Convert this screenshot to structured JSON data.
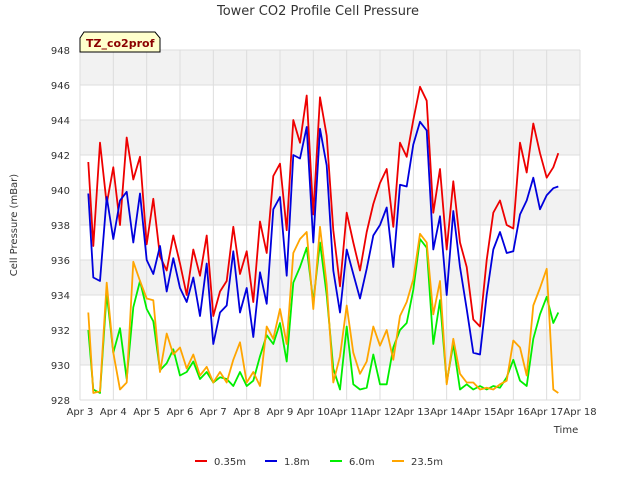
{
  "chart_data": {
    "type": "line",
    "title": "Tower CO2 Profile Cell Pressure",
    "tag": "TZ_co2prof",
    "xlabel": "Time",
    "ylabel": "Cell Pressure (mBar)",
    "ylim": [
      928,
      948
    ],
    "yticks": [
      928,
      930,
      932,
      934,
      936,
      938,
      940,
      942,
      944,
      946,
      948
    ],
    "xlim": [
      3,
      18
    ],
    "xticks": [
      {
        "v": 3,
        "label": "Apr 3"
      },
      {
        "v": 4,
        "label": "Apr 4"
      },
      {
        "v": 5,
        "label": "Apr 5"
      },
      {
        "v": 6,
        "label": "Apr 6"
      },
      {
        "v": 7,
        "label": "Apr 7"
      },
      {
        "v": 8,
        "label": "Apr 8"
      },
      {
        "v": 9,
        "label": "Apr 9"
      },
      {
        "v": 10,
        "label": "Apr 10"
      },
      {
        "v": 11,
        "label": "Apr 11"
      },
      {
        "v": 12,
        "label": "Apr 12"
      },
      {
        "v": 13,
        "label": "Apr 13"
      },
      {
        "v": 14,
        "label": "Apr 14"
      },
      {
        "v": 15,
        "label": "Apr 15"
      },
      {
        "v": 16,
        "label": "Apr 16"
      },
      {
        "v": 17,
        "label": "Apr 17"
      },
      {
        "v": 18,
        "label": "Apr 18"
      }
    ],
    "grid": true,
    "legend_position": "bottom",
    "series": [
      {
        "name": "0.35m",
        "color": "#ee0000",
        "x": [
          3.25,
          3.4,
          3.6,
          3.8,
          4.0,
          4.2,
          4.4,
          4.6,
          4.8,
          5.0,
          5.2,
          5.4,
          5.6,
          5.8,
          6.0,
          6.2,
          6.4,
          6.6,
          6.8,
          7.0,
          7.2,
          7.4,
          7.6,
          7.8,
          8.0,
          8.2,
          8.4,
          8.6,
          8.8,
          9.0,
          9.2,
          9.4,
          9.6,
          9.8,
          10.0,
          10.2,
          10.4,
          10.6,
          10.8,
          11.0,
          11.2,
          11.4,
          11.6,
          11.8,
          12.0,
          12.2,
          12.4,
          12.6,
          12.8,
          13.0,
          13.2,
          13.4,
          13.6,
          13.8,
          14.0,
          14.2,
          14.4,
          14.6,
          14.8,
          15.0,
          15.2,
          15.4,
          15.6,
          15.8,
          16.0,
          16.2,
          16.4,
          16.6,
          16.8,
          17.0,
          17.2,
          17.35
        ],
        "y": [
          941.6,
          936.8,
          942.7,
          939.2,
          941.3,
          938.0,
          943.0,
          940.6,
          941.9,
          936.9,
          939.5,
          936.2,
          935.4,
          937.4,
          935.8,
          934.0,
          936.6,
          935.1,
          937.4,
          932.8,
          934.2,
          934.8,
          937.9,
          935.2,
          936.5,
          933.6,
          938.2,
          936.4,
          940.8,
          941.5,
          937.7,
          944.0,
          942.7,
          945.4,
          938.6,
          945.3,
          943.1,
          937.7,
          934.5,
          938.7,
          937.0,
          935.4,
          937.6,
          939.2,
          940.4,
          941.2,
          937.9,
          942.7,
          941.9,
          944.0,
          945.9,
          945.1,
          938.7,
          941.2,
          936.6,
          940.5,
          937.0,
          935.6,
          932.6,
          932.2,
          936.0,
          938.7,
          939.4,
          938.0,
          937.8,
          942.7,
          941.0,
          943.8,
          942.1,
          940.7,
          941.3,
          942.1
        ]
      },
      {
        "name": "1.8m",
        "color": "#0000dd",
        "x": [
          3.25,
          3.4,
          3.6,
          3.8,
          4.0,
          4.2,
          4.4,
          4.6,
          4.8,
          5.0,
          5.2,
          5.4,
          5.6,
          5.8,
          6.0,
          6.2,
          6.4,
          6.6,
          6.8,
          7.0,
          7.2,
          7.4,
          7.6,
          7.8,
          8.0,
          8.2,
          8.4,
          8.6,
          8.8,
          9.0,
          9.2,
          9.4,
          9.6,
          9.8,
          10.0,
          10.2,
          10.4,
          10.6,
          10.8,
          11.0,
          11.2,
          11.4,
          11.6,
          11.8,
          12.0,
          12.2,
          12.4,
          12.6,
          12.8,
          13.0,
          13.2,
          13.4,
          13.6,
          13.8,
          14.0,
          14.2,
          14.4,
          14.6,
          14.8,
          15.0,
          15.2,
          15.4,
          15.6,
          15.8,
          16.0,
          16.2,
          16.4,
          16.6,
          16.8,
          17.0,
          17.2,
          17.35
        ],
        "y": [
          939.8,
          935.0,
          934.8,
          939.6,
          937.2,
          939.4,
          939.9,
          937.0,
          939.8,
          936.0,
          935.2,
          936.8,
          934.2,
          936.1,
          934.4,
          933.6,
          935.0,
          932.8,
          935.8,
          931.2,
          933.0,
          933.4,
          936.5,
          933.0,
          934.4,
          931.6,
          935.3,
          933.5,
          938.9,
          939.6,
          935.1,
          942.0,
          941.8,
          943.6,
          937.0,
          943.5,
          941.4,
          935.4,
          933.0,
          936.6,
          935.2,
          933.8,
          935.5,
          937.4,
          938.0,
          939.0,
          935.6,
          940.3,
          940.2,
          942.6,
          943.9,
          943.4,
          936.6,
          938.5,
          934.0,
          938.8,
          935.6,
          933.2,
          930.7,
          930.6,
          934.0,
          936.6,
          937.6,
          936.4,
          936.5,
          938.6,
          939.4,
          940.7,
          938.9,
          939.7,
          940.1,
          940.2
        ]
      },
      {
        "name": "6.0m",
        "color": "#00ee00",
        "x": [
          3.25,
          3.4,
          3.6,
          3.8,
          4.0,
          4.2,
          4.4,
          4.6,
          4.8,
          5.0,
          5.2,
          5.4,
          5.6,
          5.8,
          6.0,
          6.2,
          6.4,
          6.6,
          6.8,
          7.0,
          7.2,
          7.4,
          7.6,
          7.8,
          8.0,
          8.2,
          8.4,
          8.6,
          8.8,
          9.0,
          9.2,
          9.4,
          9.6,
          9.8,
          10.0,
          10.2,
          10.4,
          10.6,
          10.8,
          11.0,
          11.2,
          11.4,
          11.6,
          11.8,
          12.0,
          12.2,
          12.4,
          12.6,
          12.8,
          13.0,
          13.2,
          13.4,
          13.6,
          13.8,
          14.0,
          14.2,
          14.4,
          14.6,
          14.8,
          15.0,
          15.2,
          15.4,
          15.6,
          15.8,
          16.0,
          16.2,
          16.4,
          16.6,
          16.8,
          17.0,
          17.2,
          17.35
        ],
        "y": [
          932.0,
          928.6,
          928.4,
          934.1,
          930.7,
          932.1,
          929.2,
          933.3,
          934.8,
          933.2,
          932.5,
          929.7,
          930.1,
          930.9,
          929.4,
          929.6,
          930.2,
          929.2,
          929.6,
          929.0,
          929.3,
          929.2,
          928.8,
          929.6,
          928.8,
          929.1,
          930.5,
          931.7,
          931.2,
          932.4,
          930.2,
          934.7,
          935.6,
          936.7,
          933.6,
          937.0,
          934.0,
          929.8,
          928.6,
          932.2,
          928.9,
          928.6,
          928.7,
          930.6,
          928.9,
          928.9,
          931.0,
          932.0,
          932.4,
          934.3,
          937.2,
          936.7,
          931.2,
          933.7,
          929.0,
          931.2,
          928.6,
          928.9,
          928.6,
          928.8,
          928.6,
          928.8,
          928.7,
          929.3,
          930.3,
          929.1,
          928.8,
          931.5,
          932.9,
          933.9,
          932.4,
          933.0
        ]
      },
      {
        "name": "23.5m",
        "color": "#ffa500",
        "x": [
          3.25,
          3.4,
          3.6,
          3.8,
          4.0,
          4.2,
          4.4,
          4.6,
          4.8,
          5.0,
          5.2,
          5.4,
          5.6,
          5.8,
          6.0,
          6.2,
          6.4,
          6.6,
          6.8,
          7.0,
          7.2,
          7.4,
          7.6,
          7.8,
          8.0,
          8.2,
          8.4,
          8.6,
          8.8,
          9.0,
          9.2,
          9.4,
          9.6,
          9.8,
          10.0,
          10.2,
          10.4,
          10.6,
          10.8,
          11.0,
          11.2,
          11.4,
          11.6,
          11.8,
          12.0,
          12.2,
          12.4,
          12.6,
          12.8,
          13.0,
          13.2,
          13.4,
          13.6,
          13.8,
          14.0,
          14.2,
          14.4,
          14.6,
          14.8,
          15.0,
          15.2,
          15.4,
          15.6,
          15.8,
          16.0,
          16.2,
          16.4,
          16.6,
          16.8,
          17.0,
          17.2,
          17.35
        ],
        "y": [
          933.0,
          928.4,
          928.5,
          934.7,
          930.7,
          928.6,
          929.0,
          935.9,
          934.8,
          933.8,
          933.7,
          929.6,
          931.8,
          930.6,
          931.0,
          929.8,
          930.6,
          929.4,
          929.9,
          929.0,
          929.6,
          929.0,
          930.3,
          931.3,
          929.0,
          929.6,
          928.8,
          932.2,
          931.5,
          933.2,
          931.2,
          936.4,
          937.2,
          937.6,
          933.2,
          937.9,
          934.6,
          929.0,
          930.5,
          933.4,
          930.7,
          929.5,
          930.2,
          932.2,
          931.1,
          932.0,
          930.3,
          932.8,
          933.6,
          934.9,
          937.5,
          937.0,
          932.9,
          934.8,
          928.9,
          931.5,
          929.5,
          929.0,
          929.0,
          928.6,
          928.7,
          928.6,
          928.9,
          929.1,
          931.4,
          931.0,
          929.4,
          933.4,
          934.4,
          935.5,
          928.6,
          928.4
        ]
      }
    ]
  }
}
